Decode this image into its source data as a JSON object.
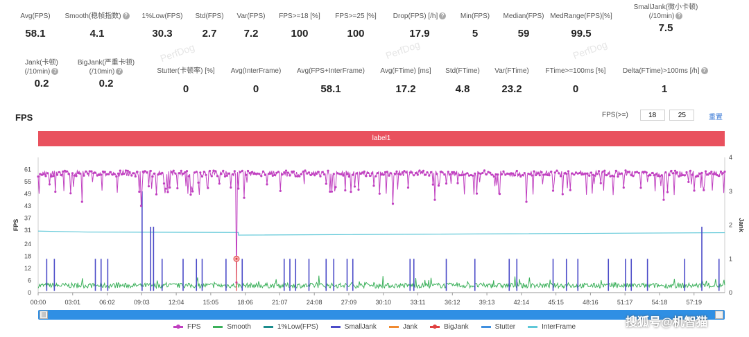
{
  "stats_row1": [
    {
      "label": "Avg(FPS)",
      "value": "58.1",
      "help": false
    },
    {
      "label": "Smooth(稳帧指数)",
      "value": "4.1",
      "help": true
    },
    {
      "label": "1%Low(FPS)",
      "value": "30.3",
      "help": false
    },
    {
      "label": "Std(FPS)",
      "value": "2.7",
      "help": false
    },
    {
      "label": "Var(FPS)",
      "value": "7.2",
      "help": false
    },
    {
      "label": "FPS>=18 [%]",
      "value": "100",
      "help": false
    },
    {
      "label": "FPS>=25 [%]",
      "value": "100",
      "help": false
    },
    {
      "label": "Drop(FPS) [/h]",
      "value": "17.9",
      "help": true
    },
    {
      "label": "Min(FPS)",
      "value": "5",
      "help": false
    },
    {
      "label": "Median(FPS)",
      "value": "59",
      "help": false
    },
    {
      "label": "MedRange(FPS)[%]",
      "value": "99.5",
      "help": false
    },
    {
      "label": "SmallJank(微小卡顿)",
      "label2": "(/10min)",
      "value": "7.5",
      "help": true
    }
  ],
  "stats_row2": [
    {
      "label": "Jank(卡顿)",
      "label2": "(/10min)",
      "value": "0.2",
      "help": true
    },
    {
      "label": "BigJank(严重卡顿)",
      "label2": "(/10min)",
      "value": "0.2",
      "help": true
    },
    {
      "label": "Stutter(卡顿率) [%]",
      "value": "0",
      "help": false
    },
    {
      "label": "Avg(InterFrame)",
      "value": "0",
      "help": false
    },
    {
      "label": "Avg(FPS+InterFrame)",
      "value": "58.1",
      "help": false
    },
    {
      "label": "Avg(FTime) [ms]",
      "value": "17.2",
      "help": false
    },
    {
      "label": "Std(FTime)",
      "value": "4.8",
      "help": false
    },
    {
      "label": "Var(FTime)",
      "value": "23.2",
      "help": false
    },
    {
      "label": "FTime>=100ms [%]",
      "value": "0",
      "help": false
    },
    {
      "label": "Delta(FTime)>100ms [/h]",
      "value": "1",
      "help": true
    }
  ],
  "section_title": "FPS",
  "fps_threshold": {
    "label": "FPS(>=)",
    "v1": "18",
    "v2": "25",
    "reset": "重置"
  },
  "label_bar": "label1",
  "watermark": "PerfDog",
  "corner_watermark": "搜狐号@机智猫",
  "chart_data": {
    "type": "line",
    "x_ticks": [
      "00:00",
      "03:01",
      "06:02",
      "09:03",
      "12:04",
      "15:05",
      "18:06",
      "21:07",
      "24:08",
      "27:09",
      "30:10",
      "33:11",
      "36:12",
      "39:13",
      "42:14",
      "45:15",
      "48:16",
      "51:17",
      "54:18",
      "57:19"
    ],
    "x_range_seconds": [
      0,
      3600
    ],
    "ylabel": "FPS",
    "y_ticks": [
      0,
      6,
      12,
      18,
      24,
      31,
      37,
      43,
      49,
      55,
      61
    ],
    "ylim": [
      0,
      67
    ],
    "y2label": "Jank",
    "y2_ticks": [
      0,
      1,
      2,
      3,
      4
    ],
    "y2lim": [
      0,
      4
    ],
    "series": [
      {
        "name": "FPS",
        "color": "#c040c0",
        "description": "mostly 57-61, dips to ~43-50, minimum 5 near 17:30",
        "typical": 59,
        "min": 5
      },
      {
        "name": "Smooth",
        "color": "#3bb05a",
        "typical": 3.5
      },
      {
        "name": "1%Low(FPS)",
        "color": "#1c8c8c"
      },
      {
        "name": "SmallJank",
        "color": "#4b4bc8"
      },
      {
        "name": "Jank",
        "color": "#f08a30"
      },
      {
        "name": "BigJank",
        "color": "#e04040"
      },
      {
        "name": "Stutter",
        "color": "#3f8fdf"
      },
      {
        "name": "InterFrame",
        "color": "#5fc8d8",
        "start_value": 30.5,
        "after_drop_value": 28.5,
        "drop_at_seconds": 1050
      }
    ],
    "fps_dips": [
      {
        "t": 230,
        "v": 45
      },
      {
        "t": 540,
        "v": 43
      },
      {
        "t": 1040,
        "v": 5
      },
      {
        "t": 1080,
        "v": 47
      },
      {
        "t": 1860,
        "v": 44
      },
      {
        "t": 2080,
        "v": 46
      },
      {
        "t": 2560,
        "v": 45
      },
      {
        "t": 3280,
        "v": 46
      }
    ],
    "smalljank_seconds": [
      45,
      85,
      300,
      330,
      365,
      545,
      590,
      605,
      650,
      760,
      830,
      860,
      985,
      1070,
      1290,
      1320,
      1350,
      1420,
      1510,
      1550,
      1620,
      1650,
      1950,
      1970,
      2140,
      2290,
      2470,
      2510,
      2700,
      2770,
      2830,
      2990,
      3080,
      3110,
      3195,
      3390,
      3480,
      3570
    ],
    "smalljank_tall_seconds": [
      545,
      605,
      590,
      3480
    ],
    "bigjank_seconds": [
      1040
    ]
  }
}
